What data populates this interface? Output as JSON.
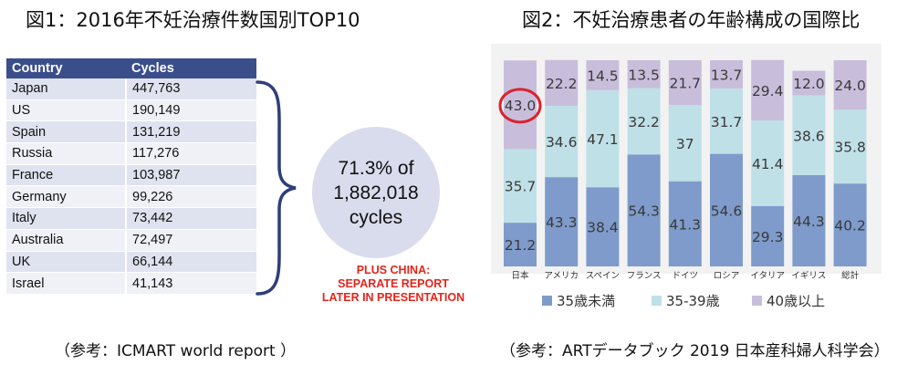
{
  "figure1": {
    "title": "図1：2016年不妊治療件数国別TOP10",
    "caption": "（参考：ICMART world report ）",
    "table": {
      "headers": [
        "Country",
        "Cycles"
      ],
      "rows": [
        [
          "Japan",
          "447,763"
        ],
        [
          "US",
          "190,149"
        ],
        [
          "Spain",
          "131,219"
        ],
        [
          "Russia",
          "117,276"
        ],
        [
          "France",
          "103,987"
        ],
        [
          "Germany",
          "99,226"
        ],
        [
          "Italy",
          "73,442"
        ],
        [
          "Australia",
          "72,497"
        ],
        [
          "UK",
          "66,144"
        ],
        [
          "Israel",
          "41,143"
        ]
      ]
    },
    "bubble": [
      "71.3% of",
      "1,882,018",
      "cycles"
    ],
    "note": [
      "PLUS CHINA:",
      "SEPARATE REPORT",
      "LATER IN PRESENTATION"
    ]
  },
  "figure2": {
    "title": "図2：不妊治療患者の年齢構成の国際比",
    "caption": "（参考：ARTデータブック 2019 日本産科婦人科学会）"
  },
  "colors": {
    "table_header": "#3b4e8c",
    "row_odd": "#dfe3ef",
    "row_even": "#eff1f7",
    "series_under35": "#7e9bcb",
    "series_35_39": "#bfe0e6",
    "series_40plus": "#c8bedb",
    "highlight": "#d9232e",
    "note": "#e3251b"
  },
  "chart_data": {
    "type": "bar",
    "stacked": true,
    "categories": [
      "日本",
      "アメリカ",
      "スペイン",
      "フランス",
      "ドイツ",
      "ロシア",
      "イタリア",
      "イギリス",
      "総計"
    ],
    "series": [
      {
        "name": "35歳未満",
        "values": [
          21.2,
          43.3,
          38.4,
          54.3,
          41.3,
          54.6,
          29.3,
          44.3,
          40.2
        ]
      },
      {
        "name": "35-39歳",
        "values": [
          35.7,
          34.6,
          47.1,
          32.2,
          37,
          31.7,
          41.4,
          38.6,
          35.8
        ]
      },
      {
        "name": "40歳以上",
        "values": [
          43.0,
          22.2,
          14.5,
          13.5,
          21.7,
          13.7,
          29.4,
          12.0,
          24.0
        ]
      }
    ],
    "value_labels": [
      [
        "21.2",
        "43.3",
        "38.4",
        "54.3",
        "41.3",
        "54.6",
        "29.3",
        "44.3",
        "40.2"
      ],
      [
        "35.7",
        "34.6",
        "47.1",
        "32.2",
        "37",
        "31.7",
        "41.4",
        "38.6",
        "35.8"
      ],
      [
        "43.0",
        "22.2",
        "14.5",
        "13.5",
        "21.7",
        "13.7",
        "29.4",
        "12.0",
        "24.0"
      ]
    ],
    "ylim": [
      0,
      100
    ],
    "legend_position": "bottom",
    "highlighted": {
      "category": "日本",
      "series": "40歳以上"
    }
  }
}
